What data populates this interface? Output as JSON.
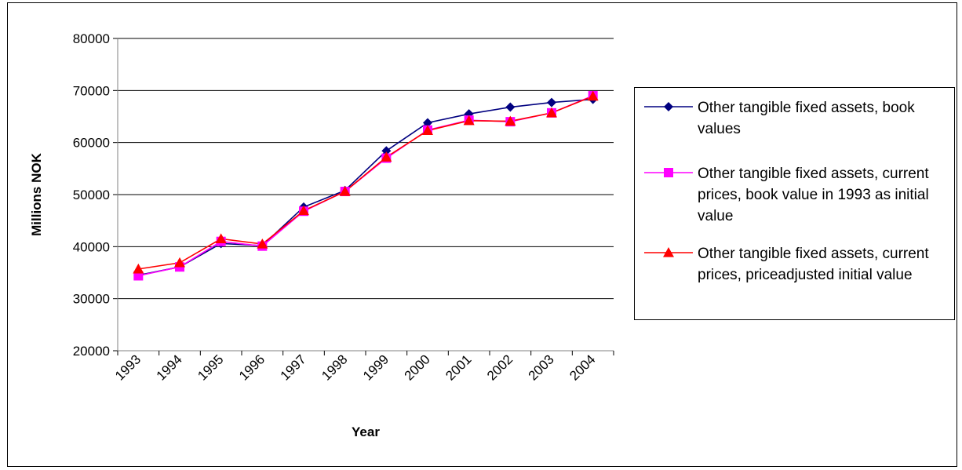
{
  "chart_data": {
    "type": "line",
    "title": "",
    "xlabel": "Year",
    "ylabel": "Millions NOK",
    "categories": [
      "1993",
      "1994",
      "1995",
      "1996",
      "1997",
      "1998",
      "1999",
      "2000",
      "2001",
      "2002",
      "2003",
      "2004"
    ],
    "ylim": [
      20000,
      80000
    ],
    "yticks": [
      20000,
      30000,
      40000,
      50000,
      60000,
      70000,
      80000
    ],
    "grid": true,
    "legend_position": "right",
    "series": [
      {
        "name": "Other tangible fixed assets, book values",
        "color": "#000080",
        "marker": "diamond",
        "values": [
          34500,
          36100,
          40600,
          40200,
          47600,
          50800,
          58400,
          63800,
          65500,
          66800,
          67700,
          68300
        ]
      },
      {
        "name": "Other tangible fixed assets, current prices, book value in 1993 as initial value",
        "color": "#FF00FF",
        "marker": "square",
        "values": [
          34400,
          36100,
          41000,
          40100,
          46800,
          50600,
          57000,
          62400,
          64300,
          64000,
          65700,
          69000
        ]
      },
      {
        "name": "Other tangible fixed assets, current prices, priceadjusted initial value",
        "color": "#FF0000",
        "marker": "triangle",
        "values": [
          35700,
          36900,
          41500,
          40500,
          46900,
          50600,
          57200,
          62300,
          64200,
          64100,
          65700,
          68900
        ]
      }
    ]
  }
}
